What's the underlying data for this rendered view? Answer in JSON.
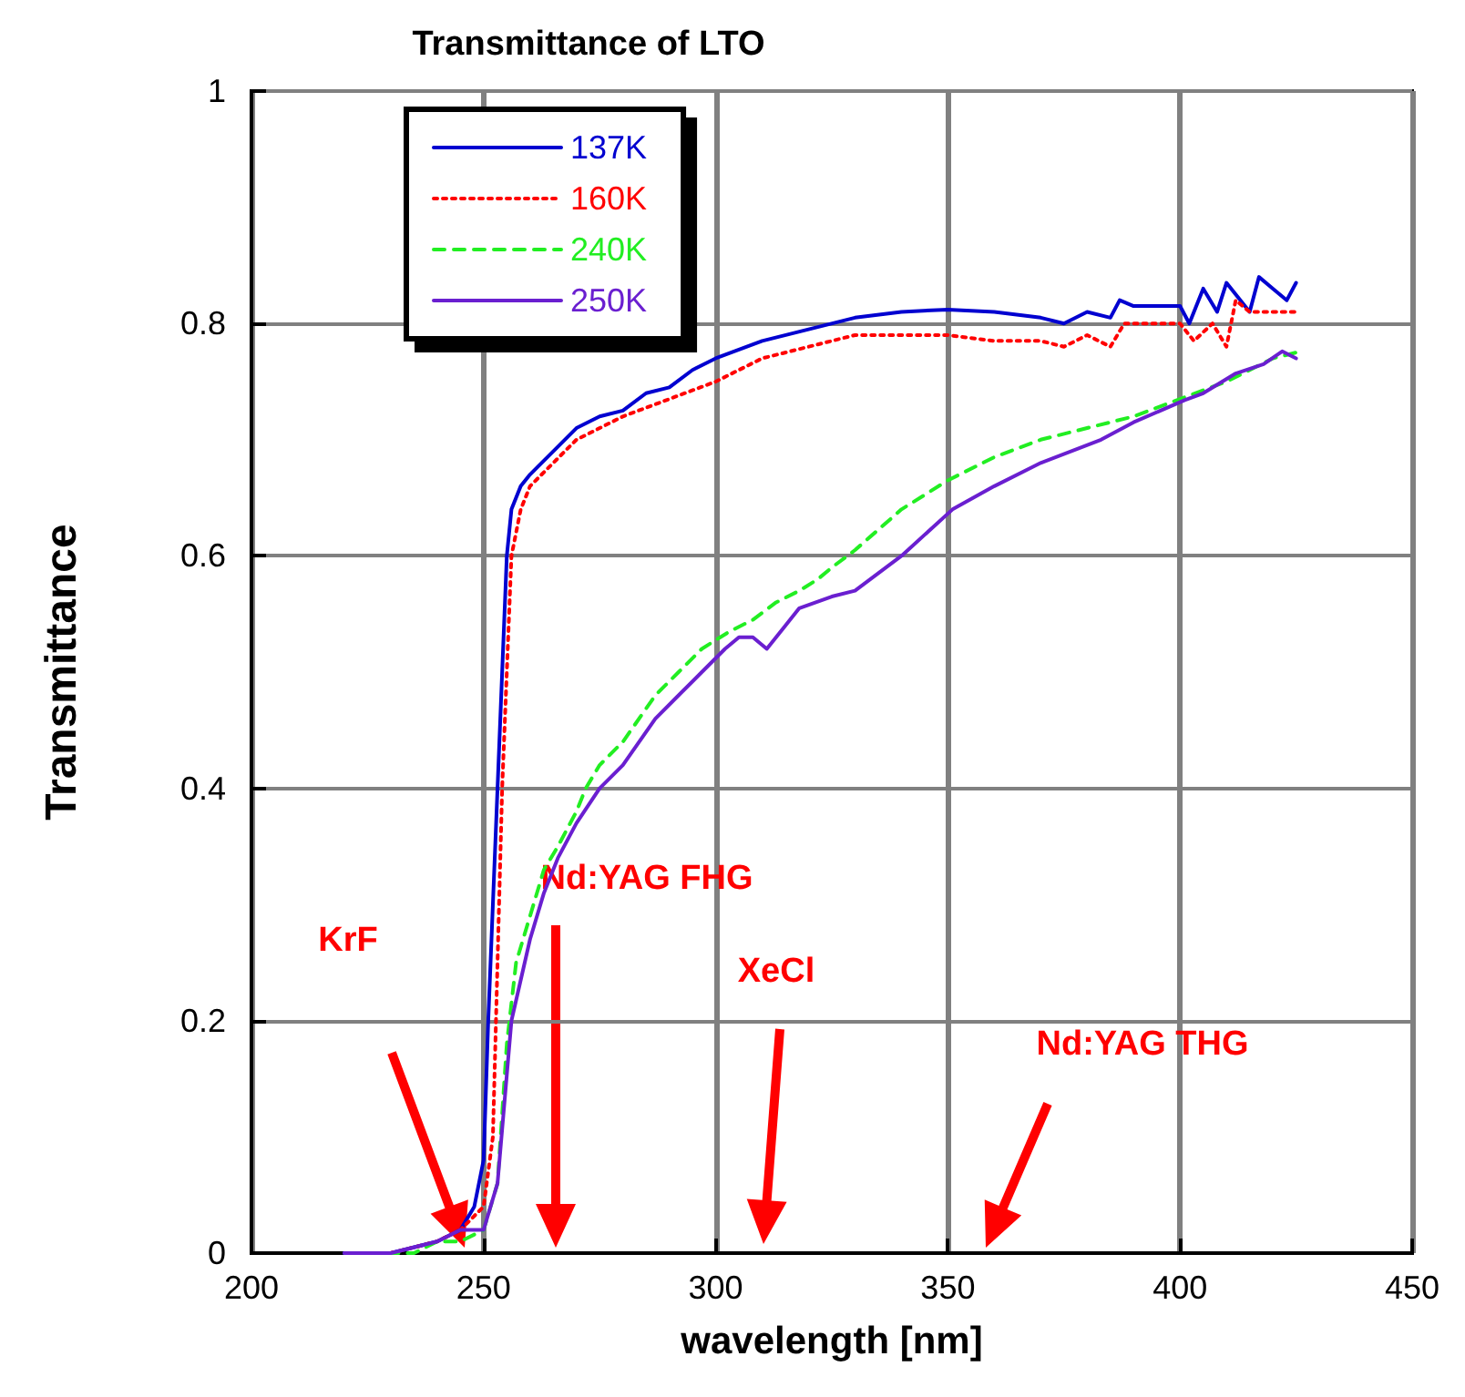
{
  "chart_data": {
    "type": "line",
    "title": "Transmittance of LTO",
    "xlabel": "wavelength [nm]",
    "ylabel": "Transmittance",
    "series": [
      {
        "name": "137K",
        "color": "#0000d0",
        "line_style": "solid",
        "x": [
          220,
          230,
          240,
          245,
          248,
          250,
          251,
          252,
          253,
          254,
          255,
          256,
          258,
          260,
          265,
          270,
          275,
          280,
          285,
          290,
          295,
          300,
          310,
          320,
          330,
          340,
          350,
          360,
          370,
          375,
          380,
          385,
          387,
          390,
          395,
          400,
          402,
          405,
          408,
          410,
          415,
          417,
          420,
          423,
          425
        ],
        "values": [
          0,
          0,
          0.01,
          0.02,
          0.04,
          0.08,
          0.2,
          0.3,
          0.4,
          0.5,
          0.6,
          0.64,
          0.66,
          0.67,
          0.69,
          0.71,
          0.72,
          0.725,
          0.74,
          0.745,
          0.76,
          0.77,
          0.785,
          0.795,
          0.805,
          0.81,
          0.812,
          0.81,
          0.805,
          0.8,
          0.81,
          0.805,
          0.82,
          0.815,
          0.815,
          0.815,
          0.8,
          0.83,
          0.81,
          0.835,
          0.81,
          0.84,
          0.83,
          0.82,
          0.835
        ]
      },
      {
        "name": "160K",
        "color": "#ff0000",
        "line_style": "dotted",
        "x": [
          230,
          240,
          245,
          250,
          252,
          253,
          254,
          255,
          256,
          258,
          260,
          265,
          270,
          280,
          290,
          300,
          310,
          320,
          330,
          340,
          350,
          360,
          370,
          375,
          380,
          385,
          388,
          395,
          400,
          403,
          407,
          410,
          412,
          415,
          420,
          425
        ],
        "values": [
          0,
          0.01,
          0.02,
          0.04,
          0.1,
          0.25,
          0.4,
          0.5,
          0.6,
          0.64,
          0.66,
          0.68,
          0.7,
          0.72,
          0.735,
          0.75,
          0.77,
          0.78,
          0.79,
          0.79,
          0.79,
          0.785,
          0.785,
          0.78,
          0.79,
          0.78,
          0.8,
          0.8,
          0.8,
          0.785,
          0.8,
          0.78,
          0.82,
          0.81,
          0.81,
          0.81
        ]
      },
      {
        "name": "240K",
        "color": "#22ee22",
        "line_style": "dashed",
        "x": [
          225,
          235,
          240,
          245,
          250,
          253,
          255,
          257,
          260,
          263,
          266,
          270,
          272,
          275,
          280,
          287,
          292,
          297,
          303,
          308,
          313,
          318,
          322,
          325,
          330,
          340,
          350,
          360,
          370,
          380,
          390,
          400,
          410,
          420,
          425
        ],
        "values": [
          0,
          0,
          0.01,
          0.01,
          0.02,
          0.06,
          0.18,
          0.25,
          0.29,
          0.33,
          0.35,
          0.38,
          0.4,
          0.42,
          0.44,
          0.48,
          0.5,
          0.52,
          0.535,
          0.545,
          0.56,
          0.57,
          0.58,
          0.59,
          0.605,
          0.64,
          0.665,
          0.685,
          0.7,
          0.71,
          0.72,
          0.735,
          0.75,
          0.77,
          0.775
        ]
      },
      {
        "name": "250K",
        "color": "#6a1fd0",
        "line_style": "solid",
        "x": [
          220,
          230,
          240,
          245,
          250,
          253,
          256,
          260,
          263,
          266,
          270,
          275,
          280,
          287,
          292,
          297,
          302,
          305,
          308,
          311,
          315,
          318,
          325,
          330,
          340,
          351,
          360,
          370,
          383,
          390,
          401,
          405,
          412,
          418,
          422,
          425
        ],
        "values": [
          0,
          0,
          0.01,
          0.02,
          0.02,
          0.06,
          0.2,
          0.27,
          0.31,
          0.34,
          0.37,
          0.4,
          0.42,
          0.46,
          0.48,
          0.5,
          0.52,
          0.53,
          0.53,
          0.52,
          0.54,
          0.555,
          0.565,
          0.57,
          0.6,
          0.64,
          0.66,
          0.68,
          0.7,
          0.715,
          0.734,
          0.74,
          0.757,
          0.765,
          0.776,
          0.77
        ]
      }
    ],
    "xlim": [
      200,
      450
    ],
    "xticks": [
      200,
      250,
      300,
      350,
      400,
      450
    ],
    "ylim": [
      0,
      1
    ],
    "yticks": [
      0,
      0.2,
      0.4,
      0.6,
      0.8,
      1
    ],
    "grid": true,
    "legend": "top left",
    "marker": "none",
    "annotations": [
      "KrF",
      "Nd:YAG FHG",
      "XeCl",
      "Nd:YAG THG"
    ]
  }
}
